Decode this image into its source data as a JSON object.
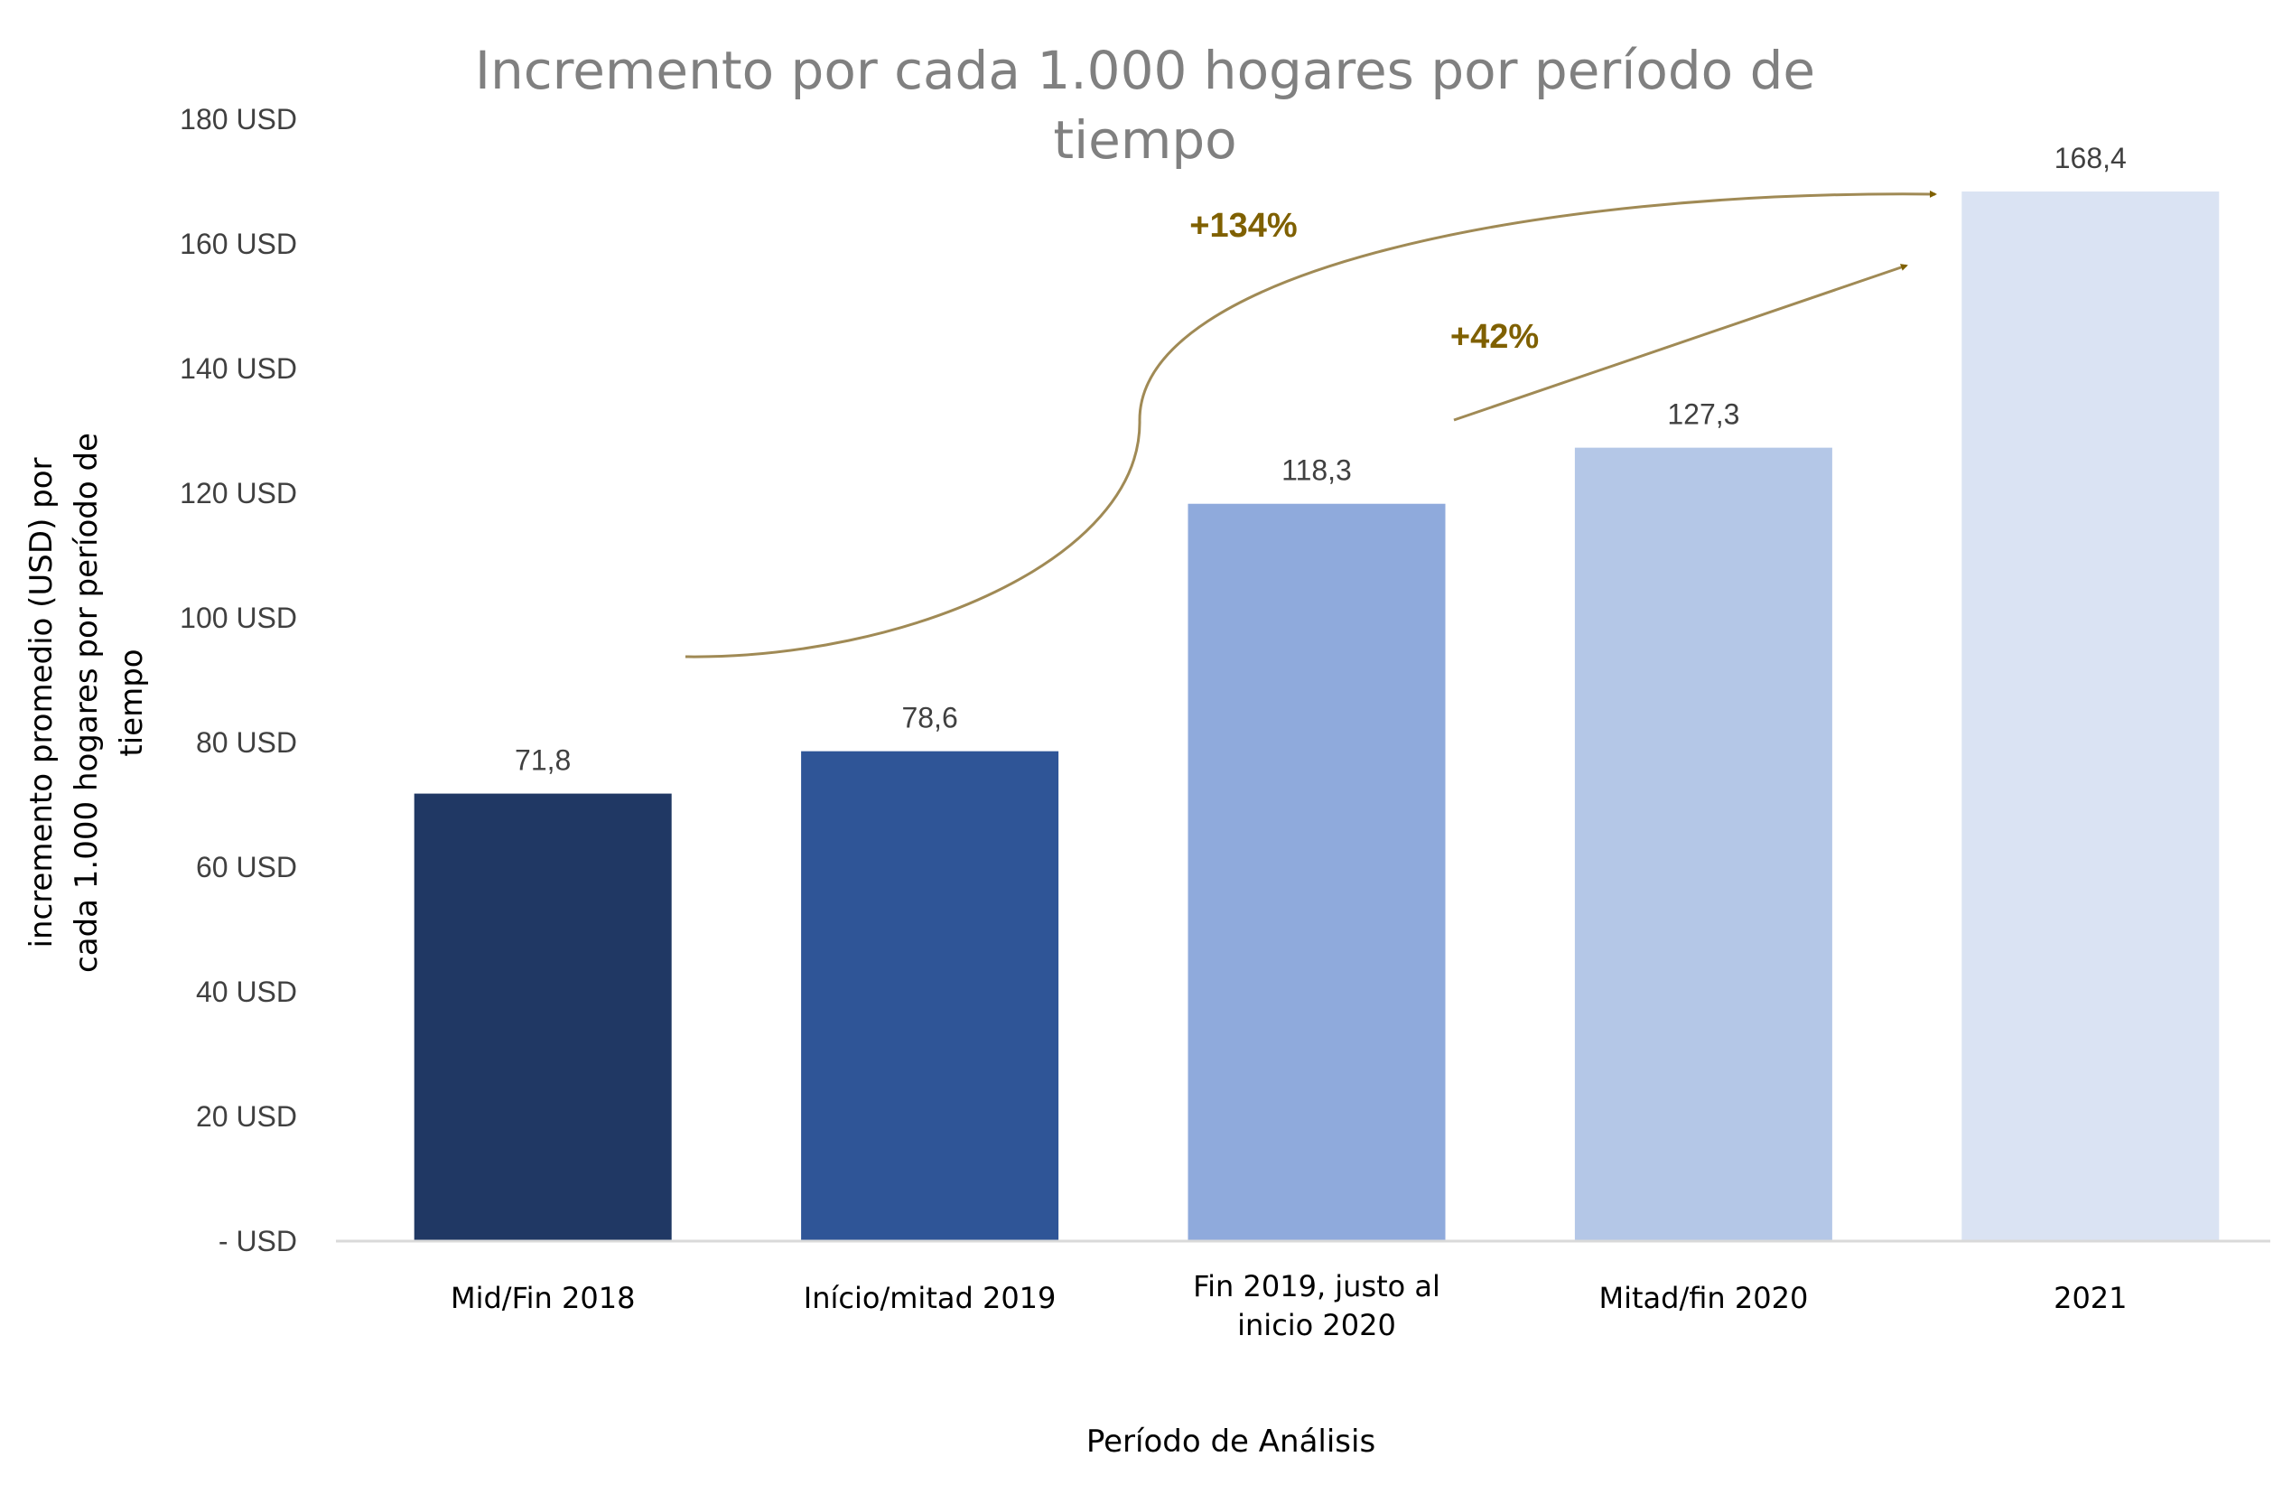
{
  "chart_data": {
    "type": "bar",
    "title": [
      "Incremento por cada 1.000 hogares por período de",
      "tiempo"
    ],
    "xlabel": "Período de Análisis",
    "ylabel": [
      "incremento promedio (USD) por",
      "cada 1.000 hogares por período de",
      "tiempo"
    ],
    "categories": [
      [
        "Mid/Fin 2018"
      ],
      [
        "Início/mitad 2019"
      ],
      [
        "Fin 2019, justo al",
        "inicio 2020"
      ],
      [
        "Mitad/fin 2020"
      ],
      [
        "2021"
      ]
    ],
    "values": [
      71.8,
      78.6,
      118.3,
      127.3,
      168.4
    ],
    "data_labels": [
      "71,8",
      "78,6",
      "118,3",
      "127,3",
      "168,4"
    ],
    "bar_colors": [
      "#203864",
      "#2F5597",
      "#8FAADC",
      "#B4C7E7",
      "#DAE3F3"
    ],
    "ylim": [
      0,
      180
    ],
    "yticks": [
      0,
      20,
      40,
      60,
      80,
      100,
      120,
      140,
      160,
      180
    ],
    "ytick_labels": [
      "- USD",
      "20 USD",
      "40 USD",
      "60 USD",
      "80 USD",
      "100 USD",
      "120 USD",
      "140 USD",
      "160 USD",
      "180 USD"
    ],
    "grid": false,
    "annotations": [
      {
        "text": "+134%",
        "from_category": "Mid/Fin 2018",
        "to_category": "2021"
      },
      {
        "text": "+42%",
        "from_category": "Fin 2019, justo al inicio 2020",
        "to_category": "2021"
      }
    ],
    "annotation_color": "#7F6000",
    "arrow_color": "#A08A55"
  }
}
